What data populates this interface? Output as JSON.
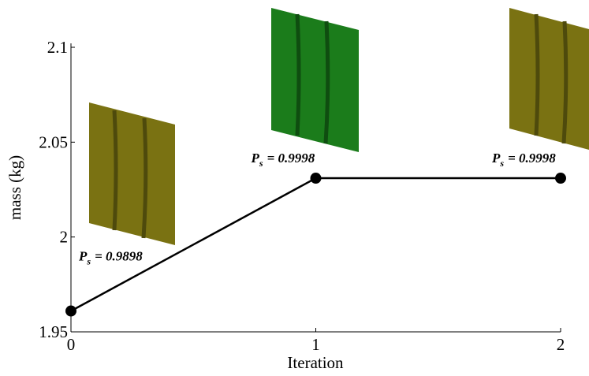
{
  "chart_data": {
    "type": "line",
    "x_label": "Iteration",
    "y_label": "mass (kg)",
    "x": [
      0,
      1,
      2
    ],
    "series": [
      {
        "color": "#000000",
        "values": [
          1.961,
          2.031,
          2.031
        ]
      }
    ],
    "xlim": [
      0,
      2
    ],
    "xticks": [
      0,
      1,
      2
    ],
    "ylim": [
      1.95,
      2.1
    ],
    "yticks": [
      1.95,
      2,
      2.05,
      2.1
    ],
    "annotations": [
      {
        "symbol": "P",
        "subscript": "s",
        "text": "= 0.9898"
      },
      {
        "symbol": "P",
        "subscript": "s",
        "text": "= 0.9998"
      },
      {
        "symbol": "P",
        "subscript": "s",
        "text": "= 0.9998"
      }
    ]
  }
}
